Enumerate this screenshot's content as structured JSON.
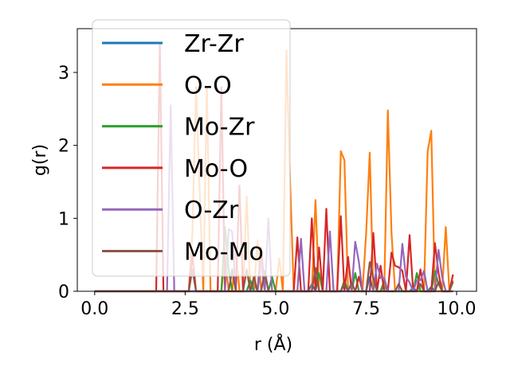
{
  "chart_data": {
    "type": "line",
    "title": "",
    "xlabel": "r (Å)",
    "ylabel": "g(r)",
    "xlim": [
      -0.48,
      10.55
    ],
    "ylim": [
      0,
      3.6
    ],
    "xticks": [
      0.0,
      2.5,
      5.0,
      7.5,
      10.0
    ],
    "xtick_labels": [
      "0.0",
      "2.5",
      "5.0",
      "7.5",
      "10.0"
    ],
    "yticks": [
      0,
      1,
      2,
      3
    ],
    "ytick_labels": [
      "0",
      "1",
      "2",
      "3"
    ],
    "grid": false,
    "legend_position": "upper-left",
    "x_step": 0.1,
    "x_start": 0.0,
    "x_end": 9.9,
    "series": [
      {
        "name": "Zr-Zr",
        "color": "#1f77b4",
        "peaks": [
          [
            4.4,
            0.12
          ],
          [
            6.0,
            0.1
          ],
          [
            7.6,
            0.2
          ],
          [
            8.0,
            0.08
          ],
          [
            8.8,
            0.05
          ],
          [
            9.3,
            0.06
          ]
        ]
      },
      {
        "name": "O-O",
        "color": "#ff7f0e",
        "peaks": [
          [
            2.7,
            0.8
          ],
          [
            2.8,
            2.8
          ],
          [
            2.9,
            1.4
          ],
          [
            3.1,
            2.8
          ],
          [
            3.6,
            0.5
          ],
          [
            3.9,
            0.6
          ],
          [
            4.2,
            1.3
          ],
          [
            4.5,
            0.7
          ],
          [
            5.1,
            0.45
          ],
          [
            5.3,
            3.3
          ],
          [
            5.4,
            1.5
          ],
          [
            6.1,
            1.25
          ],
          [
            6.8,
            1.92
          ],
          [
            6.9,
            1.8
          ],
          [
            7.5,
            0.8
          ],
          [
            7.6,
            1.9
          ],
          [
            8.1,
            2.48
          ],
          [
            8.2,
            0.8
          ],
          [
            9.2,
            1.92
          ],
          [
            9.3,
            2.2
          ],
          [
            9.7,
            0.88
          ],
          [
            9.9,
            0.15
          ]
        ]
      },
      {
        "name": "Mo-Zr",
        "color": "#2ca02c",
        "peaks": [
          [
            3.6,
            0.88
          ],
          [
            3.7,
            0.3
          ],
          [
            4.3,
            0.15
          ],
          [
            4.9,
            0.2
          ],
          [
            6.2,
            0.25
          ],
          [
            6.9,
            0.15
          ],
          [
            7.2,
            0.25
          ],
          [
            8.0,
            0.15
          ],
          [
            8.9,
            0.25
          ],
          [
            9.4,
            0.28
          ],
          [
            9.5,
            0.1
          ]
        ]
      },
      {
        "name": "Mo-O",
        "color": "#d62728",
        "peaks": [
          [
            1.8,
            3.4
          ],
          [
            2.7,
            0.5
          ],
          [
            3.5,
            2.8
          ],
          [
            4.0,
            1.45
          ],
          [
            4.6,
            0.6
          ],
          [
            5.6,
            0.74
          ],
          [
            6.0,
            1.0
          ],
          [
            6.2,
            0.6
          ],
          [
            6.4,
            1.13
          ],
          [
            6.8,
            1.03
          ],
          [
            7.0,
            0.47
          ],
          [
            7.3,
            0.2
          ],
          [
            7.7,
            0.8
          ],
          [
            7.9,
            0.35
          ],
          [
            8.2,
            0.53
          ],
          [
            8.3,
            0.35
          ],
          [
            8.4,
            0.33
          ],
          [
            8.5,
            0.28
          ],
          [
            8.7,
            0.77
          ],
          [
            9.0,
            0.3
          ],
          [
            9.4,
            0.66
          ],
          [
            9.5,
            0.25
          ],
          [
            9.9,
            0.23
          ]
        ]
      },
      {
        "name": "O-Zr",
        "color": "#9467bd",
        "peaks": [
          [
            2.1,
            2.55
          ],
          [
            3.7,
            0.85
          ],
          [
            3.8,
            0.82
          ],
          [
            4.6,
            0.4
          ],
          [
            4.8,
            1.0
          ],
          [
            5.7,
            0.72
          ],
          [
            6.5,
            0.82
          ],
          [
            7.2,
            0.68
          ],
          [
            7.3,
            0.4
          ],
          [
            7.8,
            0.38
          ],
          [
            7.9,
            0.18
          ],
          [
            8.0,
            0.18
          ],
          [
            8.5,
            0.65
          ],
          [
            8.6,
            0.2
          ],
          [
            8.7,
            0.12
          ],
          [
            8.9,
            0.15
          ],
          [
            9.0,
            0.15
          ],
          [
            9.1,
            0.28
          ],
          [
            9.5,
            0.57
          ],
          [
            9.6,
            0.2
          ]
        ]
      },
      {
        "name": "Mo-Mo",
        "color": "#8c564b",
        "peaks": [
          [
            2.7,
            0.3
          ],
          [
            3.8,
            0.3
          ],
          [
            4.2,
            0.3
          ],
          [
            4.4,
            0.2
          ],
          [
            4.7,
            0.28
          ],
          [
            6.1,
            0.32
          ],
          [
            6.9,
            0.1
          ],
          [
            7.1,
            0.12
          ],
          [
            7.6,
            0.4
          ],
          [
            7.7,
            0.18
          ],
          [
            8.4,
            0.1
          ],
          [
            9.0,
            0.1
          ],
          [
            9.5,
            0.13
          ],
          [
            9.9,
            0.13
          ]
        ]
      }
    ]
  }
}
